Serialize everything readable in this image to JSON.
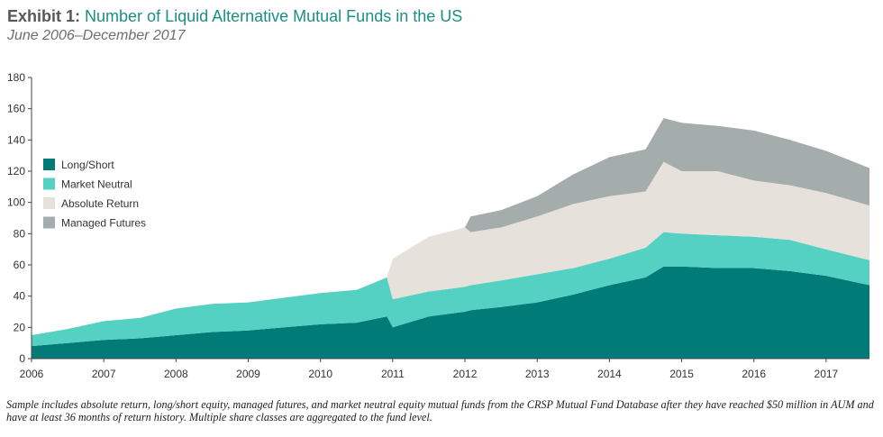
{
  "header": {
    "title_prefix": "Exhibit 1:",
    "title": "Number of Liquid Alternative Mutual Funds in the US",
    "subtitle": "June 2006–December 2017"
  },
  "note": "Sample includes absolute return, long/short equity, managed futures, and market neutral equity mutual funds from the CRSP Mutual Fund Database after they have reached $50 million in AUM and have at least 36 months of return history. Multiple share classes are aggregated to the fund level.",
  "chart_data": {
    "type": "area",
    "stacked": true,
    "x_range": [
      2006.0,
      2017.6
    ],
    "x_ticks": [
      2006,
      2007,
      2008,
      2009,
      2010,
      2011,
      2012,
      2013,
      2014,
      2015,
      2016,
      2017
    ],
    "x_tick_labels": [
      "2006",
      "2007",
      "2008",
      "2009",
      "2010",
      "2011",
      "2012",
      "2013",
      "2014",
      "2015",
      "2016",
      "2017"
    ],
    "ylim": [
      0,
      180
    ],
    "y_ticks": [
      0,
      20,
      40,
      60,
      80,
      100,
      120,
      140,
      160,
      180
    ],
    "y_tick_labels": [
      "0",
      "20",
      "40",
      "60",
      "80",
      "100",
      "120",
      "140",
      "160",
      "180"
    ],
    "legend_position": "left",
    "x": [
      2006.0,
      2006.5,
      2007.0,
      2007.5,
      2008.0,
      2008.5,
      2009.0,
      2009.5,
      2010.0,
      2010.5,
      2010.92,
      2011.0,
      2011.5,
      2012.0,
      2012.08,
      2012.5,
      2013.0,
      2013.5,
      2014.0,
      2014.5,
      2014.75,
      2015.0,
      2015.5,
      2016.0,
      2016.5,
      2017.0,
      2017.6
    ],
    "series": [
      {
        "name": "Long/Short",
        "color": "#007b78",
        "values": [
          8,
          10,
          12,
          13,
          15,
          17,
          18,
          20,
          22,
          23,
          27,
          20,
          27,
          30,
          31,
          33,
          36,
          41,
          47,
          52,
          59,
          59,
          58,
          58,
          56,
          53,
          47
        ]
      },
      {
        "name": "Market Neutral",
        "color": "#54d1c2",
        "values": [
          7,
          9,
          12,
          13,
          17,
          18,
          18,
          19,
          20,
          21,
          25,
          18,
          16,
          16,
          16,
          17,
          18,
          17,
          17,
          19,
          22,
          21,
          21,
          20,
          20,
          17,
          16
        ]
      },
      {
        "name": "Absolute Return",
        "color": "#e6e1da",
        "values": [
          0,
          0,
          0,
          0,
          0,
          0,
          0,
          0,
          0,
          0,
          0,
          26,
          35,
          38,
          34,
          34,
          37,
          41,
          40,
          36,
          45,
          40,
          41,
          36,
          35,
          36,
          35
        ]
      },
      {
        "name": "Managed Futures",
        "color": "#a4acac",
        "values": [
          0,
          0,
          0,
          0,
          0,
          0,
          0,
          0,
          0,
          0,
          0,
          0,
          0,
          0,
          10,
          11,
          13,
          19,
          25,
          27,
          28,
          31,
          29,
          32,
          29,
          27,
          24
        ]
      }
    ]
  }
}
